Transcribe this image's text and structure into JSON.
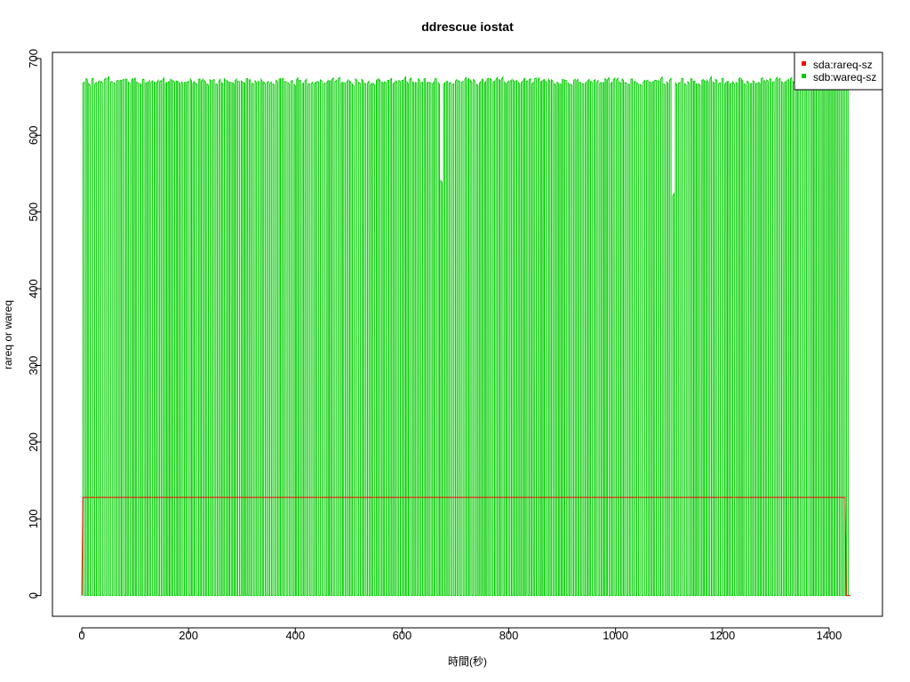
{
  "chart_data": {
    "type": "line",
    "title": "ddrescue iostat",
    "xlabel": "時間(秒)",
    "ylabel": "rareq or wareq",
    "xlim": [
      -55,
      1500
    ],
    "ylim": [
      -27,
      708
    ],
    "x_ticks": [
      0,
      200,
      400,
      600,
      800,
      1000,
      1200,
      1400
    ],
    "y_ticks": [
      0,
      100,
      200,
      300,
      400,
      500,
      600,
      700
    ],
    "x_tick_labels": [
      "0",
      "200",
      "400",
      "600",
      "800",
      "1000",
      "1200",
      "1400"
    ],
    "y_tick_labels": [
      "0",
      "100",
      "200",
      "300",
      "400",
      "500",
      "600",
      "700"
    ],
    "grid": false,
    "legend_position": "top-right",
    "series": [
      {
        "name": "sda:rareq-sz",
        "color": "#ff0000",
        "x": [
          0,
          2,
          1430,
          1432,
          1440
        ],
        "y": [
          0,
          128,
          128,
          0,
          0
        ]
      },
      {
        "name": "sdb:wareq-sz",
        "color": "#00cd00",
        "x": [
          0,
          1440
        ],
        "y": [
          0,
          0
        ],
        "pattern": "square-wave",
        "high": 670,
        "low": 0,
        "period": 5.4,
        "high_fraction": 0.5,
        "x_start": 2,
        "x_end": 1438
      }
    ]
  }
}
